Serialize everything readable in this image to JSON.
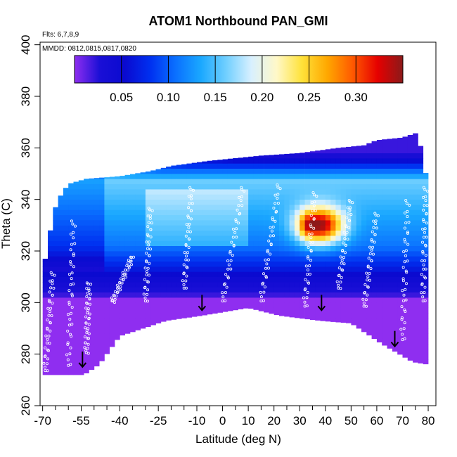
{
  "chart_data": {
    "type": "heatmap",
    "title": "ATOM1 Northbound PAN_GMI",
    "annotation_lines": [
      "Flts: 6,7,8,9",
      "MMDD: 0812,0815,0817,0820"
    ],
    "xlabel": "Latitude (deg N)",
    "ylabel": "Theta (C)",
    "xlim": [
      -71,
      83
    ],
    "ylim": [
      260,
      401
    ],
    "x_major_ticks": [
      -70,
      -55,
      -40,
      -25,
      -10,
      0,
      10,
      20,
      30,
      40,
      50,
      60,
      70,
      80
    ],
    "x_tick_labels": [
      "-70",
      "-55",
      "-40",
      "-25",
      "-10",
      "0",
      "10",
      "20",
      "30",
      "40",
      "50",
      "60",
      "70",
      "80"
    ],
    "x_minor_ticks": [
      -65,
      -60,
      -50,
      -45,
      -35,
      -30,
      -20,
      -15,
      -5,
      5,
      15,
      25,
      35,
      45,
      55,
      65,
      75
    ],
    "y_ticks": [
      260,
      280,
      300,
      320,
      340,
      360,
      380,
      400
    ],
    "y_tick_labels": [
      "260",
      "280",
      "300",
      "320",
      "340",
      "360",
      "380",
      "400"
    ],
    "colorbar": {
      "range": [
        0,
        0.35
      ],
      "ticks": [
        0.05,
        0.1,
        0.15,
        0.2,
        0.25,
        0.3
      ],
      "tick_labels": [
        "0.05",
        "0.10",
        "0.15",
        "0.20",
        "0.25",
        "0.30"
      ],
      "colors": [
        "#8f2ef0",
        "#1a0fd6",
        "#0a0ad0",
        "#0030f0",
        "#0a70ff",
        "#1aa8ff",
        "#70cfff",
        "#d8f0ff",
        "#fff8c8",
        "#ffe23a",
        "#ffa800",
        "#ff5a00",
        "#e60000",
        "#8a1a1a"
      ]
    },
    "arrow_positions": [
      {
        "lat": -54.5,
        "theta": 275
      },
      {
        "lat": -8,
        "theta": 297
      },
      {
        "lat": 38.5,
        "theta": 297
      },
      {
        "lat": 67,
        "theta": 283
      }
    ],
    "flight_tracks": [
      {
        "lat_start": -69,
        "theta_start": 273,
        "lat_end": -66,
        "theta_end": 312
      },
      {
        "lat_start": -60,
        "theta_start": 275,
        "lat_end": -58,
        "theta_end": 332
      },
      {
        "lat_start": -53,
        "theta_start": 280,
        "lat_end": -52,
        "theta_end": 308
      },
      {
        "lat_start": -43,
        "theta_start": 300,
        "lat_end": -35,
        "theta_end": 318
      },
      {
        "lat_start": -30,
        "theta_start": 300,
        "lat_end": -28,
        "theta_end": 337
      },
      {
        "lat_start": -15,
        "theta_start": 305,
        "lat_end": -12,
        "theta_end": 345
      },
      {
        "lat_start": 0,
        "theta_start": 300,
        "lat_end": 8,
        "theta_end": 345
      },
      {
        "lat_start": 15,
        "theta_start": 300,
        "lat_end": 22,
        "theta_end": 346
      },
      {
        "lat_start": 32,
        "theta_start": 298,
        "lat_end": 36,
        "theta_end": 343
      },
      {
        "lat_start": 45,
        "theta_start": 305,
        "lat_end": 50,
        "theta_end": 340
      },
      {
        "lat_start": 55,
        "theta_start": 298,
        "lat_end": 60,
        "theta_end": 335
      },
      {
        "lat_start": 70,
        "theta_start": 285,
        "lat_end": 72,
        "theta_end": 340
      },
      {
        "lat_start": 78,
        "theta_start": 300,
        "lat_end": 79,
        "theta_end": 345
      }
    ]
  }
}
